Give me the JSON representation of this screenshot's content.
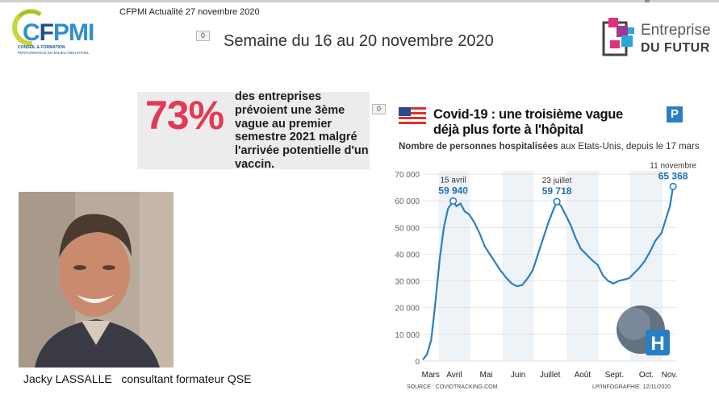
{
  "header": {
    "subtitle": "CFPMI Actualité 27 novembre 2020",
    "week_title": "Semaine du 16 au 20 novembre 2020",
    "badge_value": "0",
    "cfpmi_logo": {
      "word_c": "C",
      "word_f": "F",
      "word_pmi": "PMI",
      "tagline1": "CONSEIL & FORMATION",
      "tagline2": "PERFORMANCE EN MILIEU INDUSTRIEL"
    },
    "edf_logo": {
      "line1": "Entreprise",
      "line2": "DU FUTUR"
    }
  },
  "stat": {
    "big": "73%",
    "text": "des entreprises prévoient une 3ème vague au premier semestre 2021 malgré l'arrivée potentielle d'un vaccin.",
    "badge_value": "0"
  },
  "person": {
    "caption": "Jacky LASSALLE   consultant formateur QSE"
  },
  "chart_panel": {
    "title_line1": "Covid-19 : une troisième vague",
    "title_line2": "déjà plus forte à l'hôpital",
    "subtitle_bold": "Nombre de personnes hospitalisées",
    "subtitle_rest": " aux Etats-Unis, depuis le 17 mars",
    "p_logo": "P",
    "h_logo": "H",
    "source": "SOURCE : COVIDTRACKING.COM.",
    "credit": "LP/INFOGRAPHIE.  12/11/2020"
  },
  "colors": {
    "accent_red": "#e23a55",
    "line_blue": "#2a7fc4",
    "value_blue": "#1f6fb5",
    "stripe": "#eef3f8"
  },
  "chart_data": {
    "type": "line",
    "title": "Covid-19 : une troisième vague déjà plus forte à l'hôpital",
    "subtitle": "Nombre de personnes hospitalisées aux Etats-Unis, depuis le 17 mars",
    "ylim": [
      0,
      70000
    ],
    "yticks": [
      "0",
      "10 000",
      "20 000",
      "30 000",
      "40 000",
      "50 000",
      "60 000",
      "70 000"
    ],
    "months": [
      "Mars",
      "Avril",
      "Mai",
      "Juin",
      "Juillet",
      "Août",
      "Sept.",
      "Oct.",
      "Nov."
    ],
    "x": [
      "2020-03-17",
      "2020-03-21",
      "2020-03-25",
      "2020-03-29",
      "2020-04-02",
      "2020-04-06",
      "2020-04-10",
      "2020-04-15",
      "2020-04-18",
      "2020-04-22",
      "2020-04-26",
      "2020-04-30",
      "2020-05-05",
      "2020-05-10",
      "2020-05-15",
      "2020-05-20",
      "2020-05-25",
      "2020-05-30",
      "2020-06-05",
      "2020-06-10",
      "2020-06-15",
      "2020-06-20",
      "2020-06-25",
      "2020-06-30",
      "2020-07-05",
      "2020-07-10",
      "2020-07-15",
      "2020-07-20",
      "2020-07-23",
      "2020-07-27",
      "2020-07-31",
      "2020-08-05",
      "2020-08-10",
      "2020-08-15",
      "2020-08-20",
      "2020-08-25",
      "2020-08-31",
      "2020-09-05",
      "2020-09-10",
      "2020-09-15",
      "2020-09-20",
      "2020-09-25",
      "2020-09-30",
      "2020-10-05",
      "2020-10-10",
      "2020-10-15",
      "2020-10-20",
      "2020-10-25",
      "2020-10-31",
      "2020-11-04",
      "2020-11-08",
      "2020-11-11"
    ],
    "y": [
      500,
      2500,
      8000,
      22000,
      38000,
      50000,
      57000,
      59940,
      58000,
      59000,
      56000,
      55000,
      52000,
      48000,
      43000,
      40000,
      37000,
      34000,
      31000,
      29000,
      28000,
      28500,
      31000,
      34000,
      40000,
      46000,
      52000,
      57000,
      59718,
      58000,
      55000,
      51000,
      46000,
      42000,
      40000,
      38000,
      36000,
      32000,
      30000,
      29000,
      30000,
      30500,
      31000,
      33000,
      35000,
      37500,
      41000,
      45000,
      48000,
      53000,
      58000,
      65368
    ],
    "annotations": [
      {
        "date": "15 avril",
        "value": "59 940",
        "x": "2020-04-15",
        "y": 59940
      },
      {
        "date": "23 juillet",
        "value": "59 718",
        "x": "2020-07-23",
        "y": 59718
      },
      {
        "date": "11 novembre",
        "value": "65 368",
        "x": "2020-11-11",
        "y": 65368
      }
    ],
    "grid": true
  }
}
